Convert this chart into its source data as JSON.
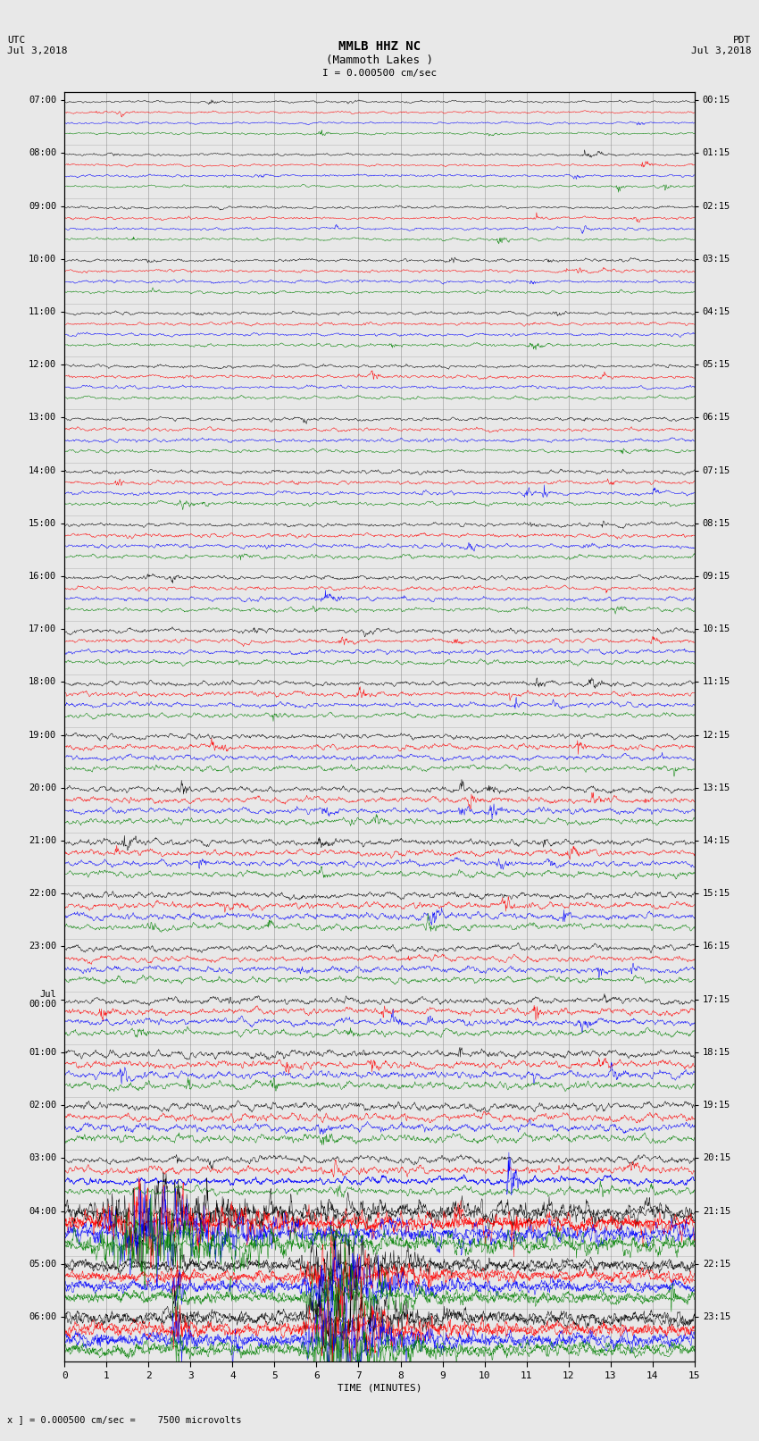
{
  "title_line1": "MMLB HHZ NC",
  "title_line2": "(Mammoth Lakes )",
  "scale_text": "I = 0.000500 cm/sec",
  "left_label": "UTC\nJul 3,2018",
  "right_label": "PDT\nJul 3,2018",
  "xlabel": "TIME (MINUTES)",
  "bottom_note": "x ] = 0.000500 cm/sec =    7500 microvolts",
  "utc_times_left": [
    "07:00",
    "08:00",
    "09:00",
    "10:00",
    "11:00",
    "12:00",
    "13:00",
    "14:00",
    "15:00",
    "16:00",
    "17:00",
    "18:00",
    "19:00",
    "20:00",
    "21:00",
    "22:00",
    "23:00",
    "Jul\n00:00",
    "01:00",
    "02:00",
    "03:00",
    "04:00",
    "05:00",
    "06:00"
  ],
  "pdt_times_right": [
    "00:15",
    "01:15",
    "02:15",
    "03:15",
    "04:15",
    "05:15",
    "06:15",
    "07:15",
    "08:15",
    "09:15",
    "10:15",
    "11:15",
    "12:15",
    "13:15",
    "14:15",
    "15:15",
    "16:15",
    "17:15",
    "18:15",
    "19:15",
    "20:15",
    "21:15",
    "22:15",
    "23:15"
  ],
  "n_rows": 24,
  "traces_per_row": 4,
  "colors": [
    "black",
    "red",
    "blue",
    "green"
  ],
  "bg_color": "#e8e8e8",
  "grid_color": "#888888",
  "xmin": 0,
  "xmax": 15,
  "xticks": [
    0,
    1,
    2,
    3,
    4,
    5,
    6,
    7,
    8,
    9,
    10,
    11,
    12,
    13,
    14,
    15
  ],
  "noise_seed": 42
}
